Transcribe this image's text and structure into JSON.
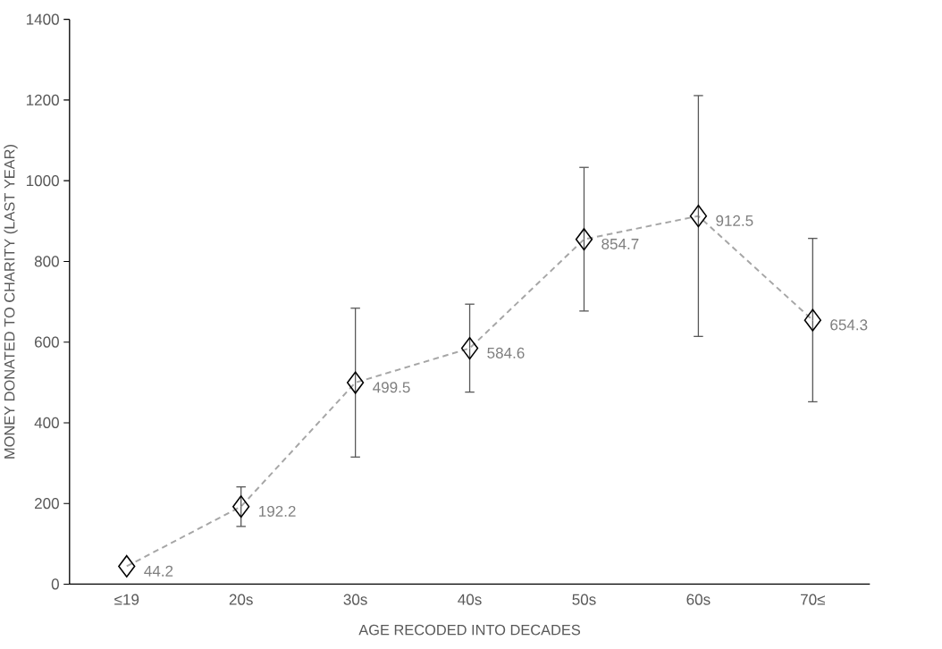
{
  "chart_data": {
    "type": "line",
    "xlabel": "AGE RECODED INTO DECADES",
    "ylabel": "MONEY DONATED TO CHARITY (LAST YEAR)",
    "categories": [
      "≤19",
      "20s",
      "30s",
      "40s",
      "50s",
      "60s",
      "70≤"
    ],
    "series": [
      {
        "color": "#a6a6a6",
        "values": [
          44.2,
          192.2,
          499.5,
          584.6,
          854.7,
          912.5,
          654.3
        ],
        "errors": [
          null,
          [
            143,
            241
          ],
          [
            315,
            684
          ],
          [
            476,
            694
          ],
          [
            677,
            1033
          ],
          [
            614,
            1211
          ],
          [
            452,
            857
          ]
        ]
      }
    ],
    "ylim": [
      0,
      1400
    ],
    "yticks": [
      0,
      200,
      400,
      600,
      800,
      1000,
      1200,
      1400
    ],
    "marker": "diamond",
    "line_style": "dashed",
    "data_labels": true
  }
}
